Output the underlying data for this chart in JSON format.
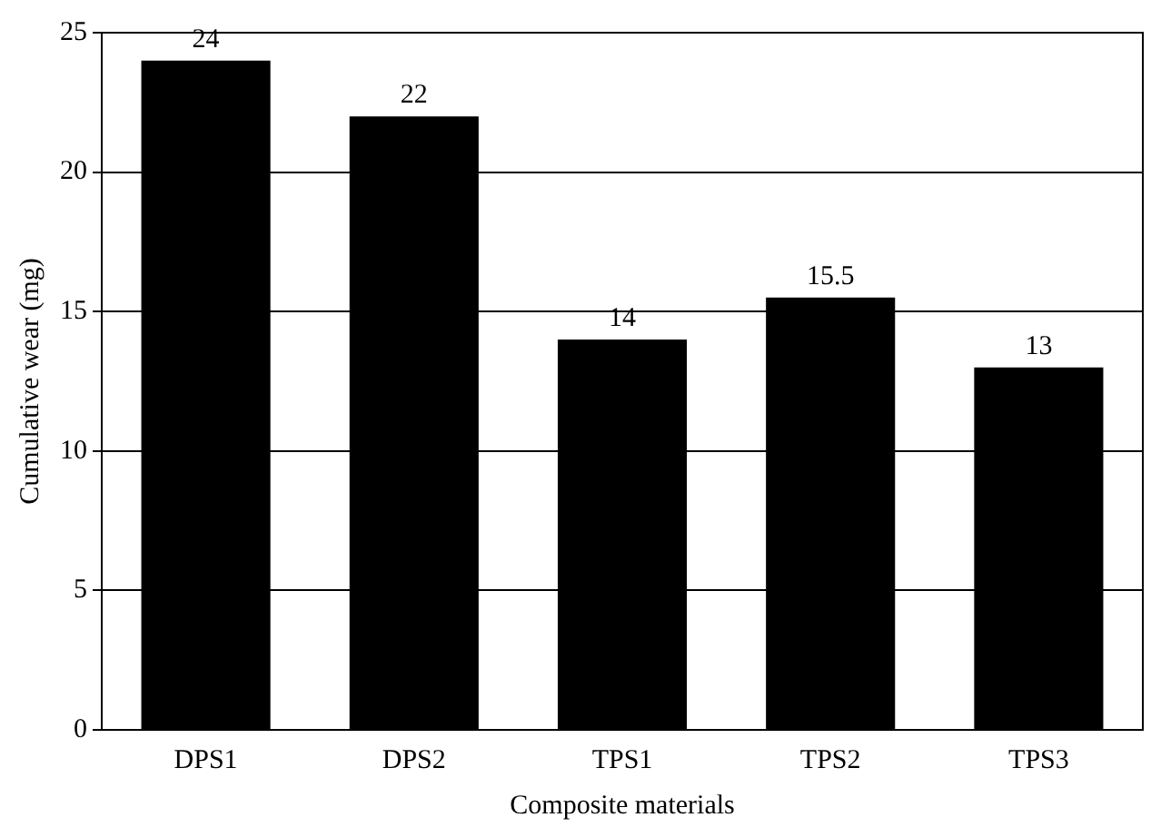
{
  "chart_data": {
    "type": "bar",
    "xlabel": "Composite materials",
    "ylabel": "Cumulative wear (mg)",
    "categories": [
      "DPS1",
      "DPS2",
      "TPS1",
      "TPS2",
      "TPS3"
    ],
    "values": [
      24,
      22,
      14,
      15.5,
      13
    ],
    "color": "#000000",
    "ylim": [
      0,
      25
    ],
    "yticks": [
      0,
      5,
      10,
      15,
      20,
      25
    ],
    "grid": "y",
    "data_labels": true,
    "legend": false
  }
}
